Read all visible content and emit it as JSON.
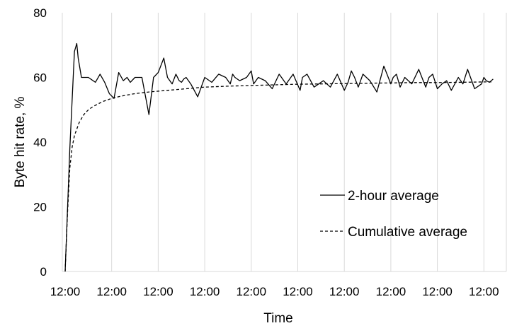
{
  "chart_data": {
    "type": "line",
    "title": "",
    "xlabel": "Time",
    "ylabel": "Byte hit rate, %",
    "ylim": [
      0,
      80
    ],
    "yticks": [
      0,
      20,
      40,
      60,
      80
    ],
    "xlim": [
      0,
      9.9
    ],
    "x_tick_positions": [
      0,
      1,
      2,
      3,
      4,
      5,
      6,
      7,
      8,
      9
    ],
    "x_tick_labels": [
      "12:00",
      "12:00",
      "12:00",
      "12:00",
      "12:00",
      "12:00",
      "12:00",
      "12:00",
      "12:00",
      "12:00"
    ],
    "grid": "vertical",
    "legend_position": "right-center",
    "series": [
      {
        "name": "2-hour average",
        "style": "solid",
        "x": [
          0,
          0.1,
          0.2,
          0.25,
          0.28,
          0.35,
          0.5,
          0.65,
          0.75,
          0.85,
          0.95,
          1.05,
          1.15,
          1.25,
          1.33,
          1.4,
          1.5,
          1.65,
          1.8,
          1.9,
          2.0,
          2.12,
          2.2,
          2.3,
          2.38,
          2.45,
          2.5,
          2.55,
          2.6,
          2.7,
          2.85,
          3.0,
          3.15,
          3.3,
          3.45,
          3.55,
          3.6,
          3.65,
          3.75,
          3.9,
          4.0,
          4.05,
          4.15,
          4.3,
          4.45,
          4.6,
          4.75,
          4.9,
          5.05,
          5.1,
          5.2,
          5.35,
          5.45,
          5.55,
          5.7,
          5.85,
          6.0,
          6.08,
          6.15,
          6.22,
          6.3,
          6.4,
          6.55,
          6.7,
          6.85,
          7.0,
          7.05,
          7.12,
          7.2,
          7.3,
          7.45,
          7.6,
          7.75,
          7.82,
          7.9,
          8.0,
          8.1,
          8.2,
          8.3,
          8.45,
          8.55,
          8.65,
          8.8,
          8.95,
          9.0,
          9.05,
          9.12,
          9.2
        ],
        "y": [
          0,
          38,
          68,
          70.5,
          66,
          60,
          60,
          58.5,
          61,
          58.5,
          55,
          53.5,
          61.5,
          59,
          60,
          58.5,
          60,
          60,
          48.5,
          60,
          61.5,
          66,
          60,
          58,
          61,
          59,
          58.5,
          59.5,
          60,
          58,
          54,
          60,
          58.5,
          61,
          60,
          58,
          61,
          60,
          59,
          60,
          62,
          58,
          60,
          59,
          56.5,
          61,
          58,
          61,
          56,
          60,
          61,
          57,
          58,
          59,
          57,
          61,
          56,
          58.5,
          62,
          60,
          57,
          61,
          59,
          55.5,
          63.5,
          58,
          60,
          61,
          57,
          60,
          58,
          62.5,
          57,
          60,
          61,
          56.5,
          58,
          59,
          56,
          60,
          58,
          62.5,
          56.5,
          58,
          60,
          59,
          58.5,
          59.5
        ]
      },
      {
        "name": "Cumulative average",
        "style": "dashed",
        "x": [
          0,
          0.05,
          0.1,
          0.15,
          0.2,
          0.3,
          0.4,
          0.5,
          0.6,
          0.8,
          1.0,
          1.2,
          1.5,
          1.8,
          2.2,
          2.6,
          3.0,
          3.5,
          4.0,
          4.5,
          5.0,
          5.5,
          6.0,
          6.5,
          7.0,
          7.5,
          8.0,
          8.5,
          9.0,
          9.2
        ],
        "y": [
          0,
          18,
          32,
          38.5,
          42,
          46,
          48.5,
          50,
          51,
          52.5,
          53.5,
          54.2,
          55,
          55.5,
          56,
          56.5,
          57,
          57.3,
          57.5,
          57.7,
          57.9,
          58,
          58.1,
          58.2,
          58.3,
          58.4,
          58.4,
          58.5,
          58.6,
          58.6
        ]
      }
    ]
  }
}
